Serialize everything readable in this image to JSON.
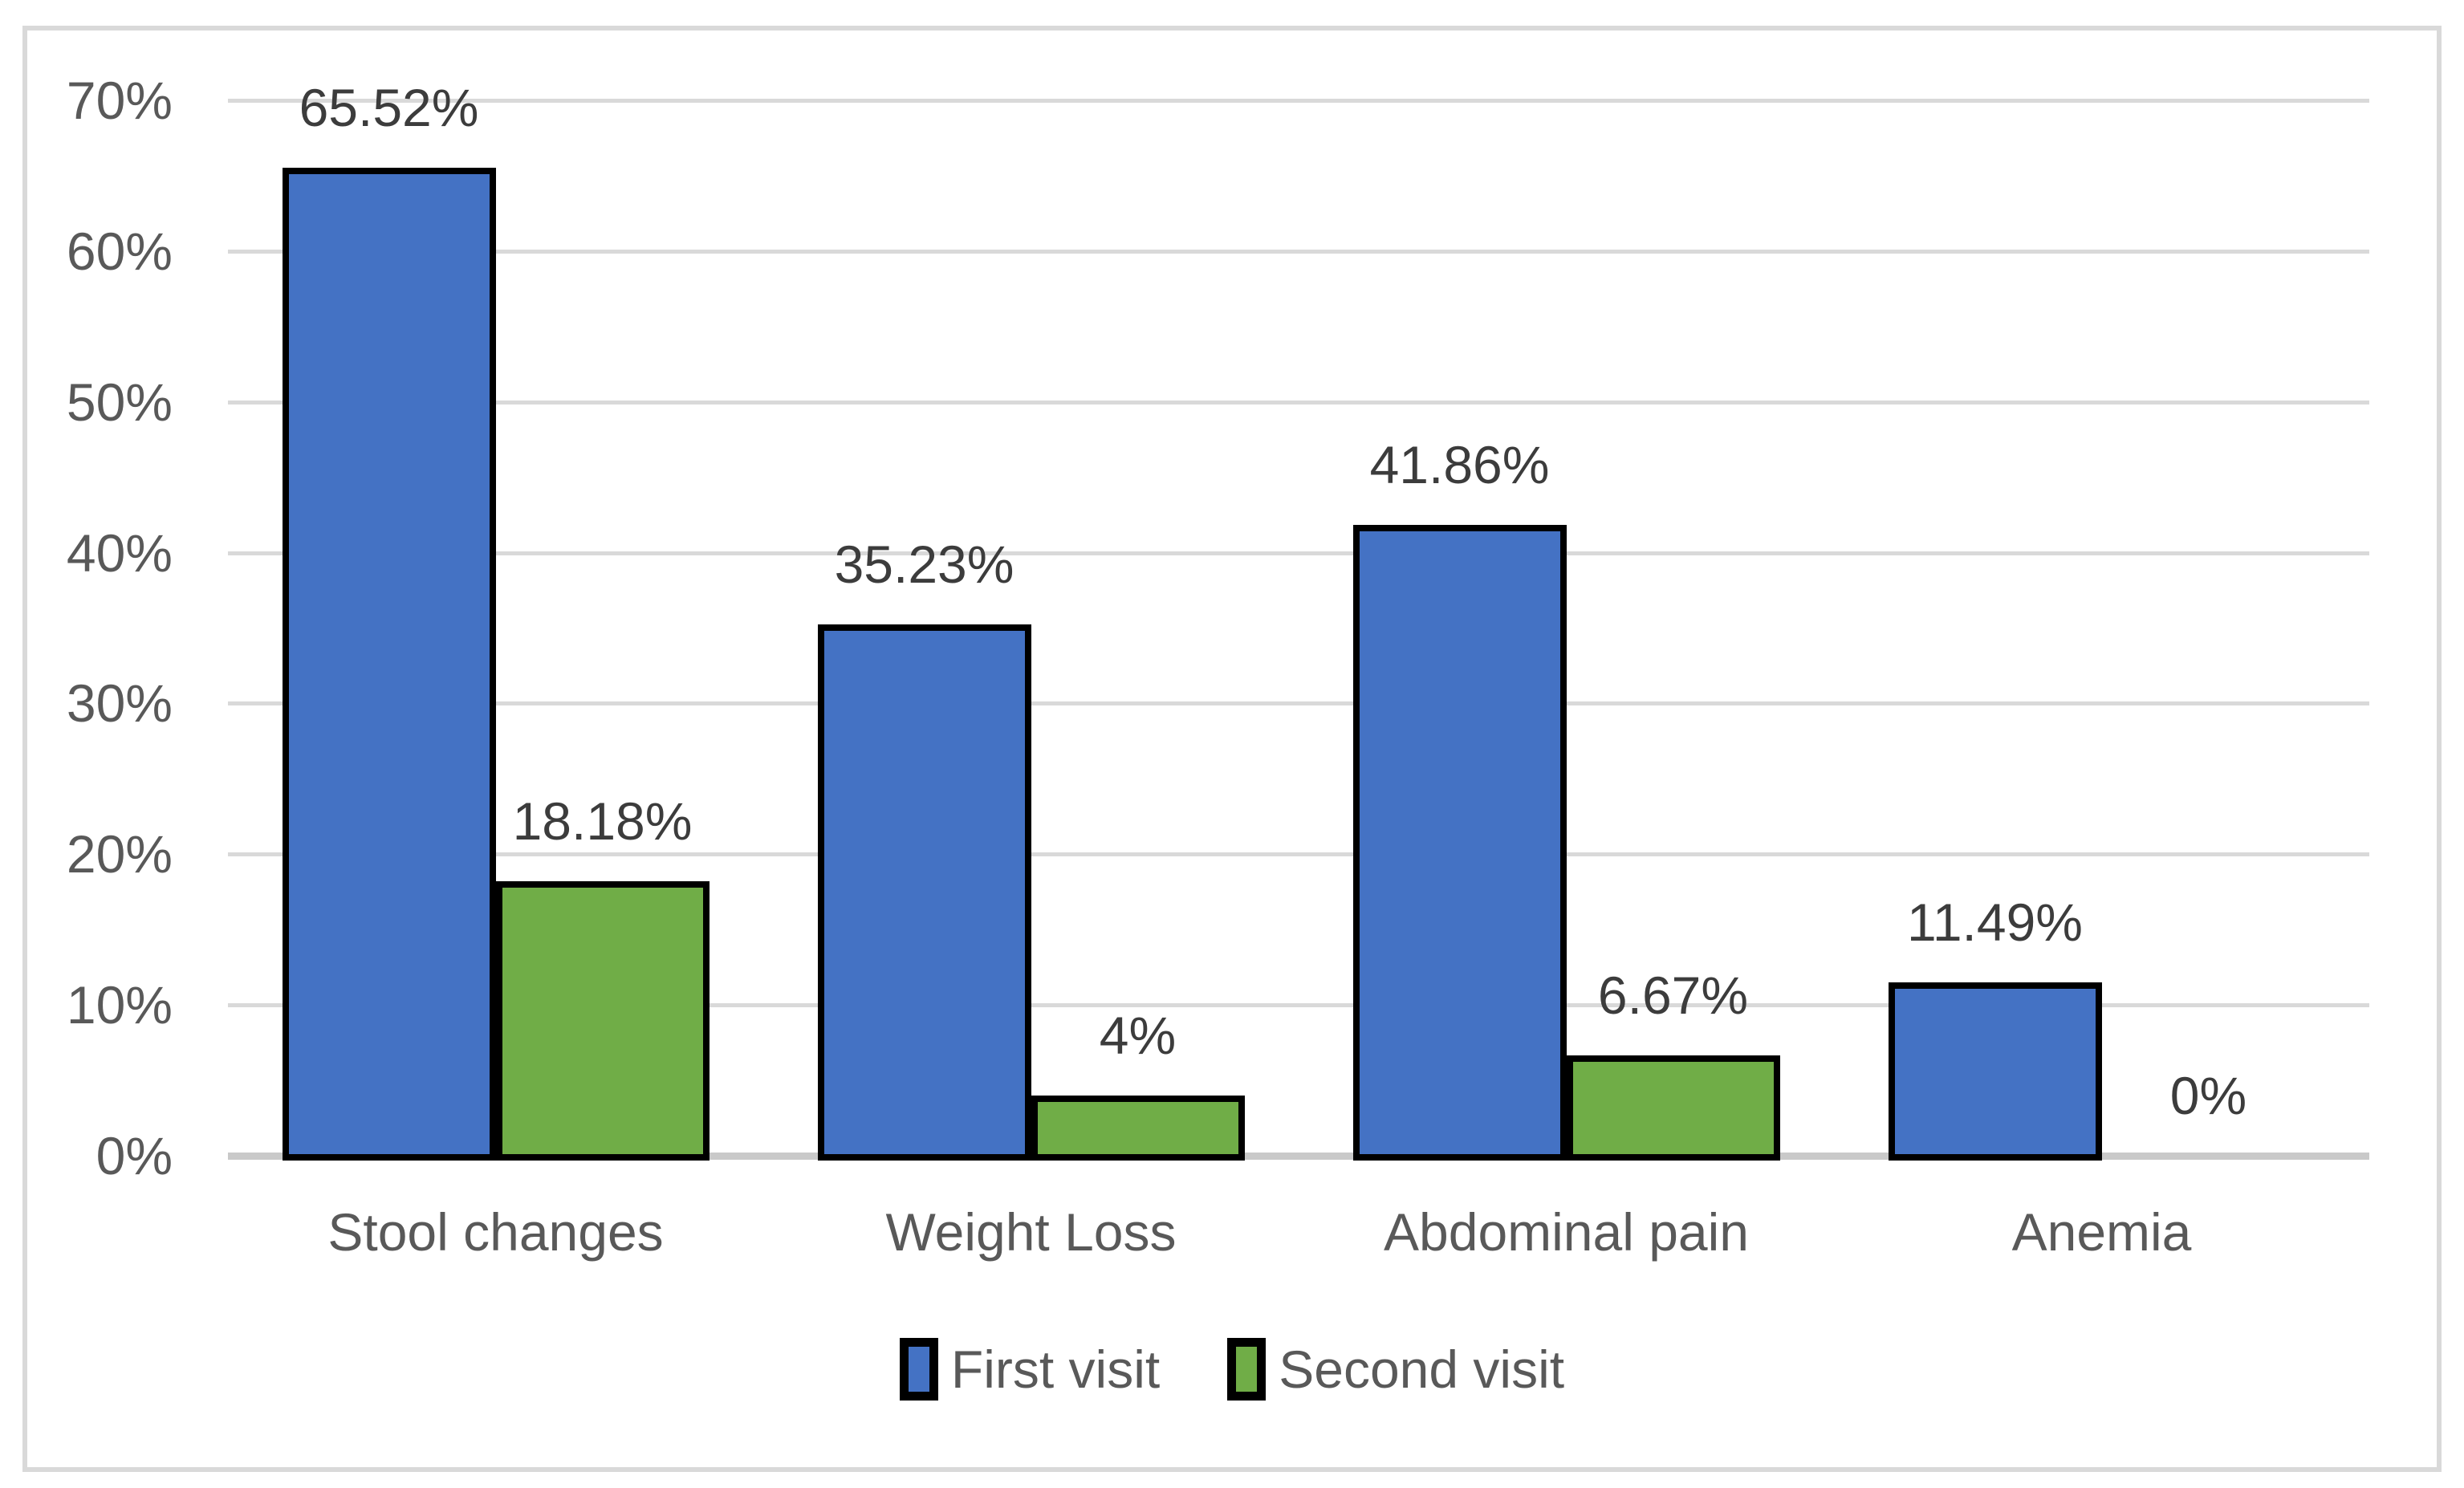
{
  "chart_data": {
    "type": "bar",
    "title": "",
    "xlabel": "",
    "ylabel": "",
    "categories": [
      "Stool changes",
      "Weight Loss",
      "Abdominal pain",
      "Anemia"
    ],
    "series": [
      {
        "name": "First visit",
        "color": "#4472C4",
        "values": [
          65.52,
          35.23,
          41.86,
          11.49
        ],
        "labels": [
          "65.52%",
          "35.23%",
          "41.86%",
          "11.49%"
        ]
      },
      {
        "name": "Second visit",
        "color": "#70AD47",
        "values": [
          18.18,
          4,
          6.67,
          0
        ],
        "labels": [
          "18.18%",
          "4%",
          "6.67%",
          "0%"
        ]
      }
    ],
    "ylim": [
      0,
      70
    ],
    "ytick_step": 10,
    "ytick_labels": [
      "0%",
      "10%",
      "20%",
      "30%",
      "40%",
      "50%",
      "60%",
      "70%"
    ],
    "grid": true,
    "legend_position": "bottom",
    "bar_border_color": "#000000",
    "gridline_color": "#D9D9D9",
    "frame_border_color": "#D9D9D9",
    "axis_label_color": "#595959",
    "data_label_color": "#3C3C3C",
    "background_color": "#FFFFFF"
  }
}
